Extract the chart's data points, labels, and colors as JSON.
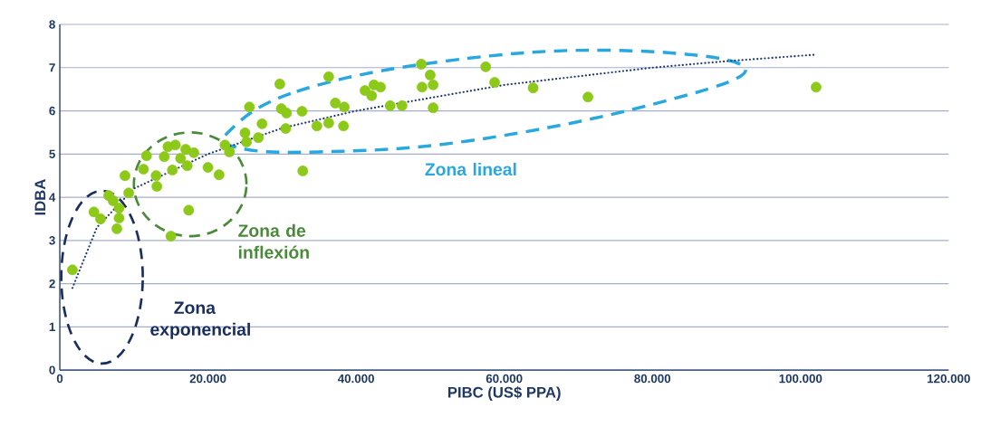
{
  "chart_data": {
    "type": "scatter",
    "xlabel": "PIBC (US$ PPA)",
    "ylabel": "IDBA",
    "xlim": [
      0,
      120000
    ],
    "ylim": [
      0,
      8
    ],
    "xticks": [
      0,
      {
        "value": 20000,
        "label": "20.000"
      },
      {
        "value": 40000,
        "label": "40.000"
      },
      {
        "value": 60000,
        "label": "60.000"
      },
      {
        "value": 80000,
        "label": "80.000"
      },
      {
        "value": 100000,
        "label": "100.000"
      },
      {
        "value": 120000,
        "label": "120.000"
      }
    ],
    "yticks": [
      0,
      1,
      2,
      3,
      4,
      5,
      6,
      7,
      8
    ],
    "grid": "y",
    "marker": "circle",
    "series": [
      {
        "color": "#8cc919",
        "x": [
          1700,
          4600,
          5500,
          6600,
          7200,
          7700,
          8000,
          8000,
          8800,
          9300,
          11300,
          11700,
          13000,
          13100,
          14100,
          14600,
          15000,
          15200,
          15600,
          16300,
          17000,
          17200,
          17400,
          18100,
          20000,
          21500,
          22300,
          22900,
          25000,
          25200,
          25600,
          26800,
          27300,
          29700,
          29900,
          30500,
          30600,
          32700,
          32800,
          34700,
          36300,
          36300,
          37200,
          38300,
          38400,
          41200,
          42100,
          42400,
          43300,
          44600,
          46200,
          48800,
          48900,
          50000,
          50400,
          50400,
          57500,
          58700,
          63900,
          71300,
          102100
        ],
        "values": [
          2.32,
          3.66,
          3.5,
          4.04,
          3.92,
          3.27,
          3.52,
          3.75,
          4.5,
          4.1,
          4.65,
          4.96,
          4.5,
          4.25,
          4.94,
          5.17,
          3.1,
          4.63,
          5.21,
          4.9,
          5.11,
          4.73,
          3.7,
          5.03,
          4.69,
          4.52,
          5.21,
          5.05,
          5.49,
          5.28,
          6.09,
          5.38,
          5.7,
          6.62,
          6.05,
          5.59,
          5.95,
          5.99,
          4.61,
          5.65,
          5.72,
          6.79,
          6.18,
          5.65,
          6.09,
          6.47,
          6.35,
          6.6,
          6.55,
          6.12,
          6.12,
          7.08,
          6.55,
          6.83,
          6.6,
          6.07,
          7.02,
          6.66,
          6.53,
          6.32,
          6.55
        ]
      },
      {
        "type": "line",
        "color": "#1f3a73",
        "line_style": "dotted",
        "marker": "none",
        "x": [
          1700,
          5000,
          10000,
          20000,
          30000,
          40000,
          50000,
          60000,
          70000,
          80000,
          90000,
          102000
        ],
        "values": [
          1.9,
          3.3,
          4.2,
          5.0,
          5.6,
          6.0,
          6.3,
          6.6,
          6.8,
          7.0,
          7.15,
          7.3
        ]
      }
    ],
    "annotations": [
      "Zona exponencial",
      "Zona de inflexión",
      "Zona lineal"
    ]
  }
}
